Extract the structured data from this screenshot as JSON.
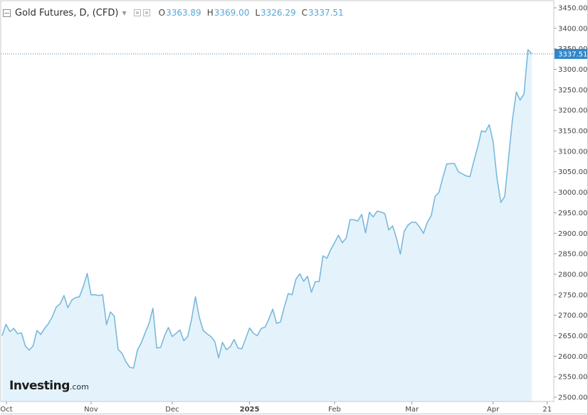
{
  "header": {
    "title": "Gold Futures, D, (CFD)",
    "open_label": "O",
    "open_value": "3363.89",
    "high_label": "H",
    "high_value": "3369.00",
    "low_label": "L",
    "low_value": "3326.29",
    "close_label": "C",
    "close_value": "3337.51"
  },
  "logo": {
    "main": "Investing",
    "suffix": ".com"
  },
  "colors": {
    "line": "#7ab8dd",
    "area": "#e4f3fb",
    "last_price_bg": "#2f86c9",
    "axis_text": "#444444",
    "grid": "#c9c9c9"
  },
  "chart_data": {
    "type": "area",
    "ylim": [
      2490,
      3460
    ],
    "y_ticks": [
      "3450.00",
      "3400.00",
      "3350.00",
      "3300.00",
      "3250.00",
      "3200.00",
      "3150.00",
      "3100.00",
      "3050.00",
      "3000.00",
      "2950.00",
      "2900.00",
      "2850.00",
      "2800.00",
      "2750.00",
      "2700.00",
      "2650.00",
      "2600.00",
      "2550.00",
      "2500.00"
    ],
    "x_ticks": [
      {
        "label": "Oct",
        "index": 0
      },
      {
        "label": "Nov",
        "index": 23
      },
      {
        "label": "Dec",
        "index": 44
      },
      {
        "label": "2025",
        "index": 64
      },
      {
        "label": "Feb",
        "index": 86
      },
      {
        "label": "Mar",
        "index": 106
      },
      {
        "label": "Apr",
        "index": 127
      },
      {
        "label": "21",
        "index": 141
      }
    ],
    "last_price": 3337.51,
    "last_price_label": "3337.51",
    "values": [
      2650,
      2678,
      2660,
      2668,
      2655,
      2657,
      2625,
      2615,
      2625,
      2663,
      2653,
      2668,
      2680,
      2697,
      2720,
      2728,
      2748,
      2718,
      2737,
      2743,
      2745,
      2770,
      2802,
      2750,
      2750,
      2748,
      2750,
      2677,
      2708,
      2698,
      2617,
      2607,
      2587,
      2573,
      2571,
      2615,
      2633,
      2657,
      2680,
      2717,
      2620,
      2622,
      2650,
      2670,
      2648,
      2656,
      2664,
      2638,
      2648,
      2690,
      2745,
      2695,
      2663,
      2655,
      2648,
      2636,
      2596,
      2634,
      2616,
      2623,
      2641,
      2620,
      2618,
      2643,
      2669,
      2656,
      2650,
      2668,
      2671,
      2691,
      2715,
      2680,
      2684,
      2720,
      2753,
      2750,
      2788,
      2801,
      2783,
      2795,
      2756,
      2782,
      2782,
      2845,
      2839,
      2860,
      2877,
      2895,
      2877,
      2888,
      2933,
      2933,
      2930,
      2946,
      2901,
      2951,
      2940,
      2954,
      2952,
      2948,
      2908,
      2918,
      2888,
      2849,
      2905,
      2920,
      2927,
      2927,
      2915,
      2900,
      2927,
      2943,
      2990,
      3000,
      3036,
      3069,
      3070,
      3070,
      3050,
      3045,
      3040,
      3038,
      3075,
      3110,
      3150,
      3147,
      3165,
      3123,
      3035,
      2975,
      2990,
      3083,
      3176,
      3245,
      3225,
      3240,
      3348,
      3337.51
    ]
  }
}
